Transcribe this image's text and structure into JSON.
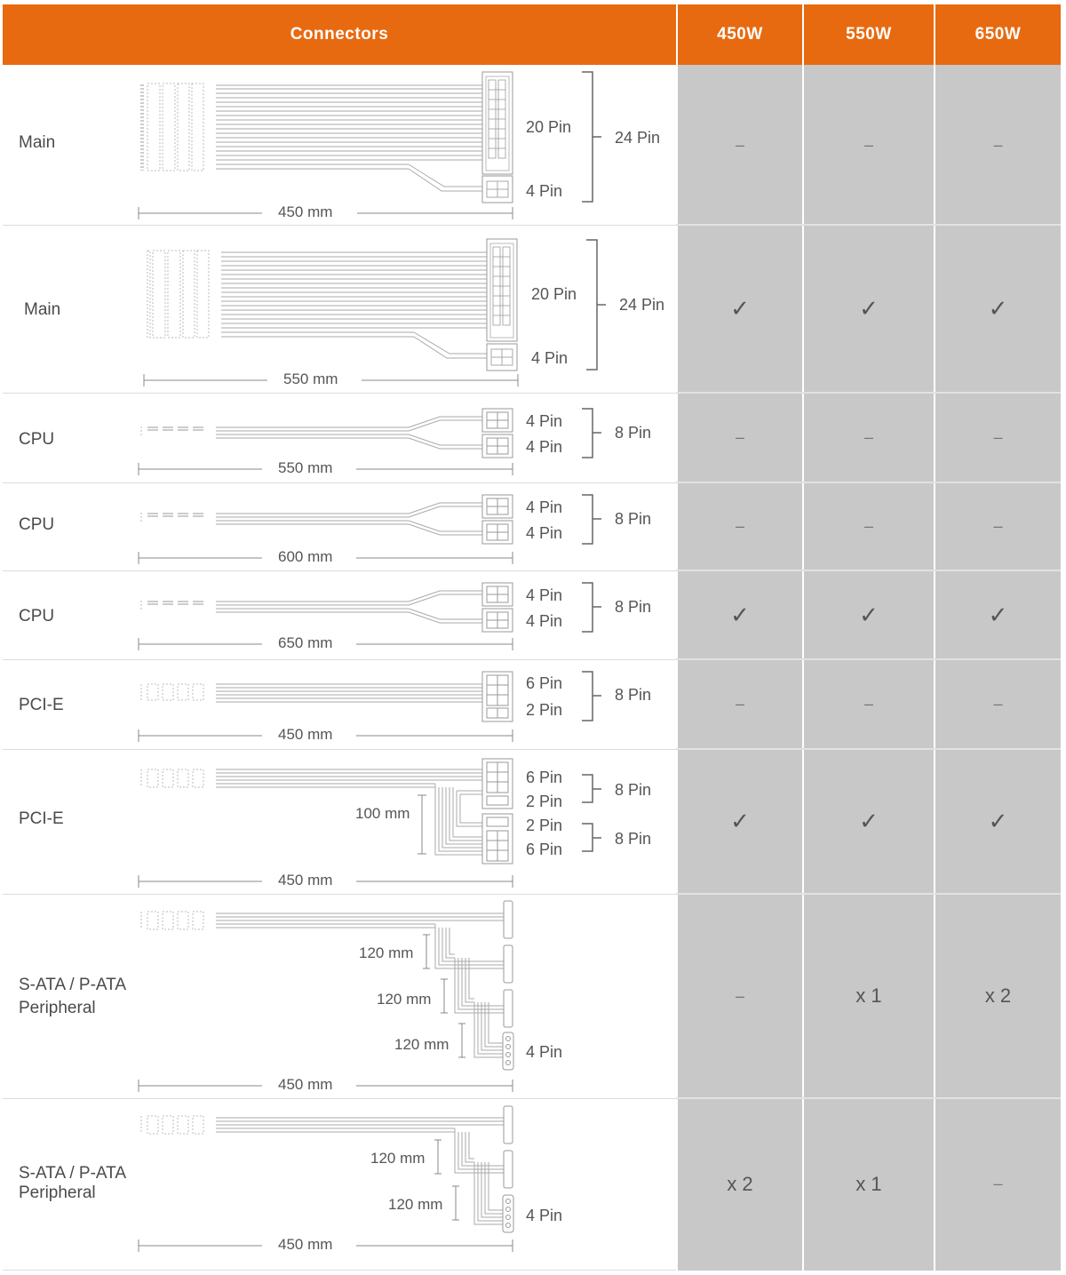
{
  "header": {
    "connectors": "Connectors",
    "w450": "450W",
    "w550": "550W",
    "w650": "650W"
  },
  "rows": [
    {
      "label": "Main",
      "pins": [
        "20 Pin",
        "4 Pin"
      ],
      "group": "24 Pin",
      "length": "450 mm",
      "values": [
        "–",
        "–",
        "–"
      ]
    },
    {
      "label": "Main",
      "pins": [
        "20 Pin",
        "4 Pin"
      ],
      "group": "24 Pin",
      "length": "550 mm",
      "values": [
        "✓",
        "✓",
        "✓"
      ]
    },
    {
      "label": "CPU",
      "pins": [
        "4 Pin",
        "4 Pin"
      ],
      "group": "8 Pin",
      "length": "550 mm",
      "values": [
        "–",
        "–",
        "–"
      ]
    },
    {
      "label": "CPU",
      "pins": [
        "4 Pin",
        "4 Pin"
      ],
      "group": "8 Pin",
      "length": "600 mm",
      "values": [
        "–",
        "–",
        "–"
      ]
    },
    {
      "label": "CPU",
      "pins": [
        "4 Pin",
        "4 Pin"
      ],
      "group": "8 Pin",
      "length": "650 mm",
      "values": [
        "✓",
        "✓",
        "✓"
      ]
    },
    {
      "label": "PCI-E",
      "pins": [
        "6 Pin",
        "2 Pin"
      ],
      "group": "8 Pin",
      "length": "450 mm",
      "values": [
        "–",
        "–",
        "–"
      ]
    },
    {
      "label": "PCI-E",
      "pins": [
        "6 Pin",
        "2 Pin",
        "2 Pin",
        "6 Pin"
      ],
      "group": "8 Pin",
      "group2": "8 Pin",
      "sub_length": "100 mm",
      "length": "450 mm",
      "values": [
        "✓",
        "✓",
        "✓"
      ]
    },
    {
      "label_line1": "S-ATA / P-ATA",
      "label_line2": "Peripheral",
      "seg": [
        "120 mm",
        "120 mm",
        "120 mm"
      ],
      "end_pin": "4 Pin",
      "length": "450 mm",
      "values": [
        "–",
        "x 1",
        "x 2"
      ]
    },
    {
      "label_line1": "S-ATA / P-ATA",
      "label_line2": "Peripheral",
      "seg": [
        "120 mm",
        "120 mm"
      ],
      "end_pin": "4 Pin",
      "length": "450 mm",
      "values": [
        "x 2",
        "x 1",
        "–"
      ]
    }
  ],
  "colors": {
    "accent": "#e86a10",
    "cell_bg": "#c8c8c8"
  }
}
